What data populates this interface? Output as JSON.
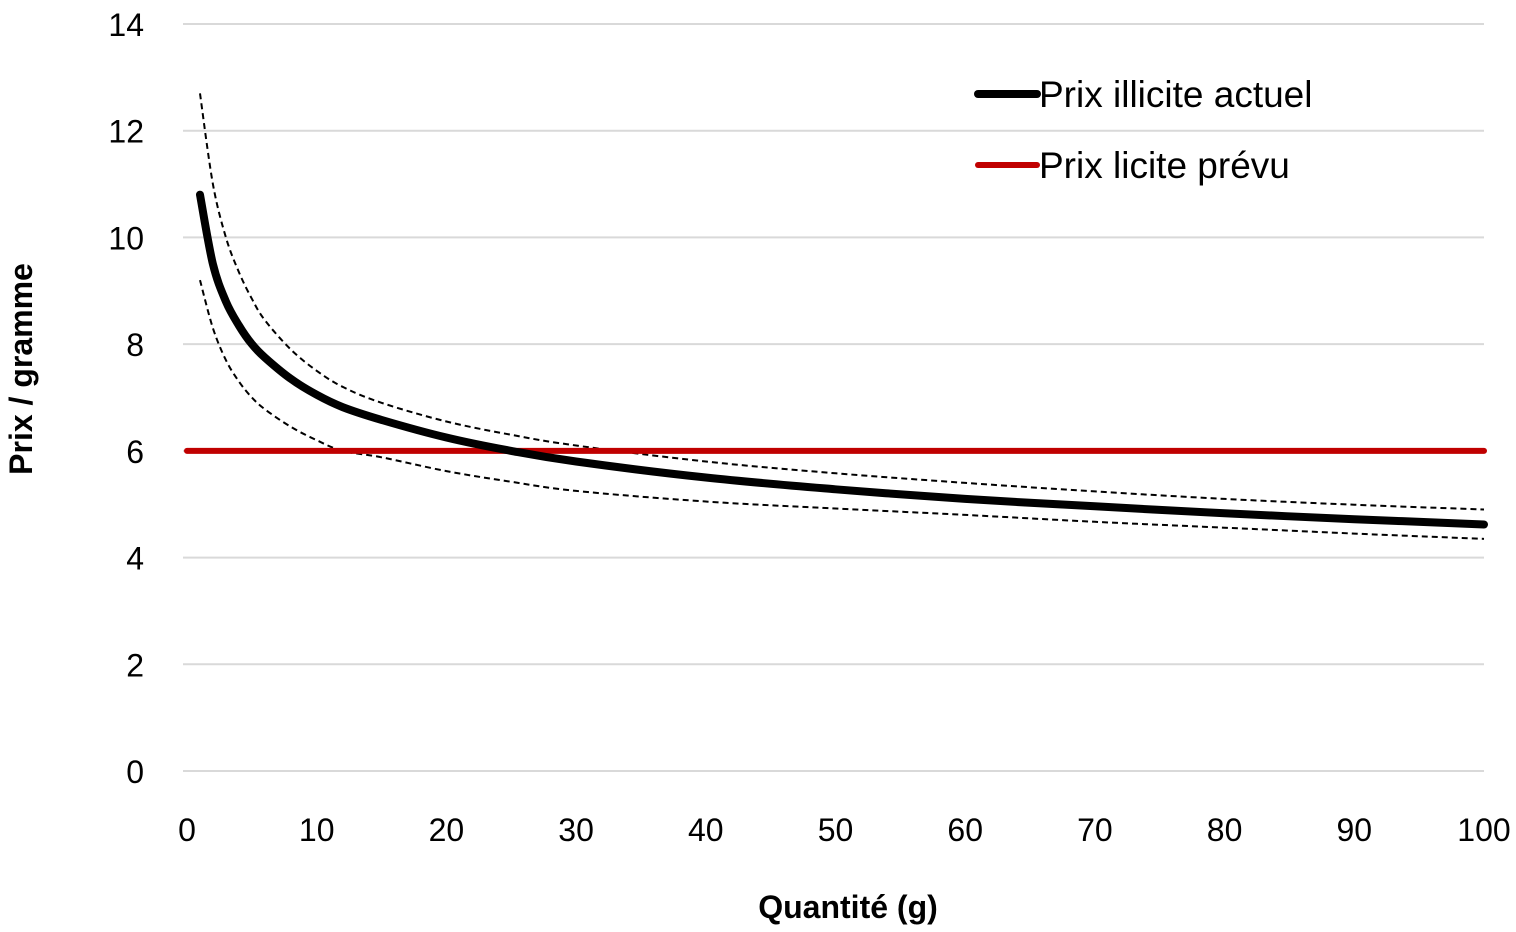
{
  "chart_data": {
    "type": "line",
    "title": "",
    "xlabel": "Quantité (g)",
    "ylabel": "Prix / gramme",
    "xlim": [
      0,
      100
    ],
    "ylim": [
      0,
      14
    ],
    "x_ticks": [
      "0",
      "10",
      "20",
      "30",
      "40",
      "50",
      "60",
      "70",
      "80",
      "90",
      "100"
    ],
    "y_ticks": [
      "0",
      "2",
      "4",
      "6",
      "8",
      "10",
      "12",
      "14"
    ],
    "grid": "horizontal",
    "legend_position": "top-right",
    "x": [
      1,
      2,
      3,
      4,
      5,
      6,
      8,
      10,
      12,
      15,
      20,
      25,
      30,
      40,
      50,
      60,
      70,
      80,
      90,
      100
    ],
    "series": [
      {
        "name": "Prix illicite actuel",
        "color": "#000000",
        "style": "solid",
        "values": [
          10.8,
          9.5,
          8.8,
          8.35,
          8.0,
          7.75,
          7.35,
          7.05,
          6.82,
          6.58,
          6.25,
          6.0,
          5.8,
          5.5,
          5.28,
          5.1,
          4.96,
          4.83,
          4.72,
          4.62
        ]
      },
      {
        "name": "Prix licite prévu",
        "color": "#c00000",
        "style": "solid",
        "values": [
          6,
          6,
          6,
          6,
          6,
          6,
          6,
          6,
          6,
          6,
          6,
          6,
          6,
          6,
          6,
          6,
          6,
          6,
          6,
          6
        ]
      },
      {
        "color": "#000000",
        "style": "dashed",
        "values": [
          12.7,
          11.0,
          10.0,
          9.35,
          8.85,
          8.45,
          7.9,
          7.5,
          7.2,
          6.9,
          6.55,
          6.3,
          6.1,
          5.8,
          5.58,
          5.4,
          5.24,
          5.1,
          4.99,
          4.9
        ]
      },
      {
        "color": "#000000",
        "style": "dashed",
        "values": [
          9.2,
          8.3,
          7.7,
          7.3,
          7.0,
          6.78,
          6.45,
          6.2,
          6.0,
          5.88,
          5.62,
          5.42,
          5.25,
          5.05,
          4.92,
          4.8,
          4.67,
          4.56,
          4.45,
          4.35
        ]
      }
    ]
  }
}
